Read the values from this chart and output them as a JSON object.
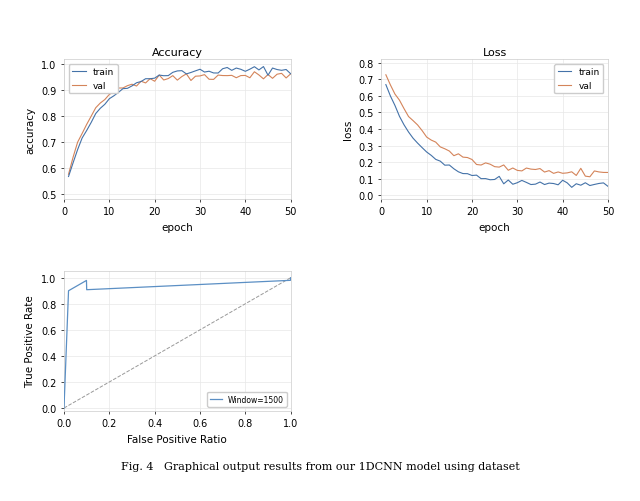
{
  "fig_width": 6.4,
  "fig_height": 5.02,
  "dpi": 100,
  "bg_color": "#ffffff",
  "epochs": 50,
  "acc_title": "Accuracy",
  "acc_xlabel": "epoch",
  "acc_ylabel": "accuracy",
  "acc_ylim": [
    0.48,
    1.02
  ],
  "acc_xlim": [
    0,
    50
  ],
  "loss_title": "Loss",
  "loss_xlabel": "epoch",
  "loss_ylabel": "loss",
  "loss_ylim": [
    -0.02,
    0.82
  ],
  "loss_xlim": [
    0,
    50
  ],
  "roc_xlabel": "False Positive Ratio",
  "roc_ylabel": "True Positive Rate",
  "roc_xlim": [
    0.0,
    1.0
  ],
  "roc_ylim": [
    -0.02,
    1.05
  ],
  "roc_legend": "Window=1500",
  "train_color": "#4472a8",
  "val_color": "#d4845a",
  "roc_color": "#5b8fc4",
  "diag_color": "#999999",
  "grid_color": "#e8e8e8",
  "spine_color": "#cccccc",
  "caption": "Fig. 4   Graphical output results from our 1DCNN model using dataset"
}
